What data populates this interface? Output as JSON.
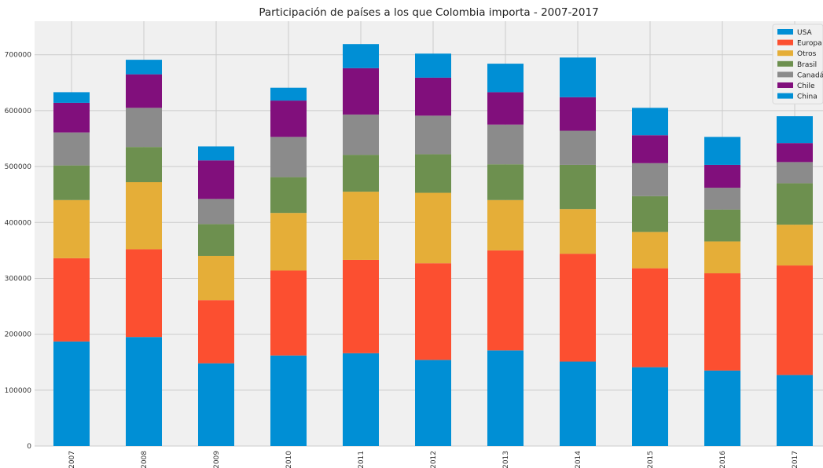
{
  "chart_data": {
    "type": "bar",
    "stacked": true,
    "title": "Participación de países a los que Colombia importa - 2007-2017",
    "xlabel": "",
    "ylabel": "",
    "ylim": [
      0,
      760000
    ],
    "yticks": [
      0,
      100000,
      200000,
      300000,
      400000,
      500000,
      600000,
      700000
    ],
    "ytick_labels": [
      "0",
      "100000",
      "200000",
      "300000",
      "400000",
      "500000",
      "600000",
      "700000"
    ],
    "grid": true,
    "legend_position": "top-right",
    "categories": [
      "2007",
      "2008",
      "2009",
      "2010",
      "2011",
      "2012",
      "2013",
      "2014",
      "2015",
      "2016",
      "2017"
    ],
    "series": [
      {
        "name": "USA",
        "color": "#008fd5",
        "values": [
          187000,
          195000,
          148000,
          162000,
          166000,
          154000,
          171000,
          151000,
          141000,
          135000,
          127000
        ]
      },
      {
        "name": "Europa",
        "color": "#fc4f30",
        "values": [
          149000,
          157000,
          113000,
          152000,
          167000,
          173000,
          179000,
          193000,
          177000,
          174000,
          196000
        ]
      },
      {
        "name": "Otros",
        "color": "#e5ae38",
        "values": [
          104000,
          120000,
          79000,
          103000,
          122000,
          126000,
          90000,
          80000,
          65000,
          57000,
          73000
        ]
      },
      {
        "name": "Brasil",
        "color": "#6d904f",
        "values": [
          62000,
          63000,
          57000,
          64000,
          66000,
          69000,
          64000,
          79000,
          64000,
          57000,
          74000
        ]
      },
      {
        "name": "Canadá",
        "color": "#8b8b8b",
        "values": [
          59000,
          70000,
          45000,
          72000,
          72000,
          69000,
          71000,
          61000,
          59000,
          39000,
          38000
        ]
      },
      {
        "name": "Chile",
        "color": "#810f7c",
        "values": [
          53000,
          60000,
          69000,
          65000,
          83000,
          68000,
          58000,
          60000,
          50000,
          41000,
          34000
        ]
      },
      {
        "name": "China",
        "color": "#008fd5",
        "values": [
          19000,
          26000,
          25000,
          23000,
          43000,
          43000,
          51000,
          71000,
          49000,
          50000,
          48000
        ]
      }
    ]
  }
}
